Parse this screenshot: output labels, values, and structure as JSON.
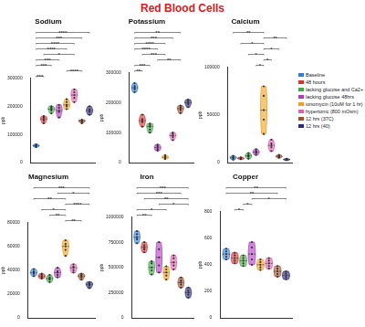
{
  "title": "Red Blood Cells",
  "legend": "right",
  "chart_data": [
    {
      "type": "violin",
      "title": "Sodium",
      "y_label": "ppb",
      "ylim": [
        0,
        300000
      ],
      "yticks": [
        0,
        100000,
        200000,
        300000
      ],
      "grid": false,
      "tick_labels": "y",
      "series": [
        {
          "name": "Baseline",
          "color": "#2f7fd8",
          "values": [
            55000,
            58000,
            62000,
            65000,
            60000
          ]
        },
        {
          "name": "48 hours",
          "color": "#e03030",
          "values": [
            140000,
            150000,
            160000,
            165000,
            155000
          ]
        },
        {
          "name": "lacking glucose and Ca2+ 48 hrs",
          "color": "#3faa48",
          "values": [
            175000,
            185000,
            195000,
            200000,
            190000
          ]
        },
        {
          "name": "lacking glucose 48hrs",
          "color": "#b03ac0",
          "values": [
            160000,
            180000,
            195000,
            205000,
            185000
          ]
        },
        {
          "name": "ionomycin (10uM for 1 hr)",
          "color": "#f0a020",
          "values": [
            190000,
            200000,
            215000,
            225000,
            205000
          ]
        },
        {
          "name": "hypertonic (800 mOsm)",
          "color": "#e060b0",
          "values": [
            215000,
            230000,
            250000,
            260000,
            240000
          ]
        },
        {
          "name": "12 hrs (37C)",
          "color": "#a0522d",
          "values": [
            140000,
            145000,
            150000,
            148000,
            152000
          ]
        },
        {
          "name": "12 hrs (40)",
          "color": "#2a2a80",
          "values": [
            170000,
            180000,
            190000,
            200000,
            185000
          ]
        }
      ],
      "comparisons": [
        {
          "groups": [
            0,
            1
          ],
          "label": "***"
        },
        {
          "groups": [
            4,
            6
          ],
          "label": "****"
        },
        {
          "groups": [
            0,
            2
          ],
          "label": "***"
        },
        {
          "groups": [
            0,
            3
          ],
          "label": "***"
        },
        {
          "groups": [
            1,
            5
          ],
          "label": "*"
        },
        {
          "groups": [
            0,
            4
          ],
          "label": "****"
        },
        {
          "groups": [
            0,
            5
          ],
          "label": "****"
        },
        {
          "groups": [
            0,
            6
          ],
          "label": "***"
        },
        {
          "groups": [
            0,
            7
          ],
          "label": "****"
        }
      ]
    },
    {
      "type": "violin",
      "title": "Potassium",
      "y_label": "ppb",
      "ylim": [
        0,
        300000
      ],
      "yticks": [
        0,
        100000,
        200000,
        300000
      ],
      "grid": false,
      "tick_labels": "y",
      "series": [
        {
          "name": "Baseline",
          "color": "#2f7fd8",
          "values": [
            235000,
            245000,
            255000,
            265000,
            250000
          ]
        },
        {
          "name": "48 hours",
          "color": "#e03030",
          "values": [
            120000,
            135000,
            145000,
            160000,
            140000
          ]
        },
        {
          "name": "lacking glucose and Ca2+ 48 hrs",
          "color": "#3faa48",
          "values": [
            100000,
            110000,
            120000,
            130000,
            125000
          ]
        },
        {
          "name": "lacking glucose 48hrs",
          "color": "#b03ac0",
          "values": [
            40000,
            45000,
            50000,
            60000,
            55000
          ]
        },
        {
          "name": "ionomycin (10uM for 1 hr)",
          "color": "#f0a020",
          "values": [
            12000,
            15000,
            20000,
            25000,
            18000
          ]
        },
        {
          "name": "hypertonic (800 mOsm)",
          "color": "#e060b0",
          "values": [
            75000,
            85000,
            90000,
            100000,
            95000
          ]
        },
        {
          "name": "12 hrs (37C)",
          "color": "#a0522d",
          "values": [
            165000,
            175000,
            180000,
            190000,
            185000
          ]
        },
        {
          "name": "12 hrs (40)",
          "color": "#2a2a80",
          "values": [
            185000,
            195000,
            200000,
            210000,
            205000
          ]
        }
      ],
      "comparisons": [
        {
          "groups": [
            0,
            1
          ],
          "label": "**"
        },
        {
          "groups": [
            0,
            2
          ],
          "label": "***"
        },
        {
          "groups": [
            3,
            6
          ],
          "label": "**"
        },
        {
          "groups": [
            1,
            4
          ],
          "label": "***"
        },
        {
          "groups": [
            0,
            3
          ],
          "label": "****"
        },
        {
          "groups": [
            0,
            4
          ],
          "label": "****"
        },
        {
          "groups": [
            0,
            5
          ],
          "label": "***"
        },
        {
          "groups": [
            0,
            6
          ],
          "label": "**"
        }
      ]
    },
    {
      "type": "violin",
      "title": "Calcium",
      "y_label": "ppb",
      "ylim": [
        0,
        100000
      ],
      "yticks": [
        0,
        50000,
        100000
      ],
      "grid": false,
      "tick_labels": "y",
      "series": [
        {
          "name": "Baseline",
          "color": "#2f7fd8",
          "values": [
            3000,
            4500,
            6000,
            7000,
            5000
          ]
        },
        {
          "name": "48 hours",
          "color": "#e03030",
          "values": [
            3500,
            4000,
            5000,
            5500,
            4500
          ]
        },
        {
          "name": "lacking glucose and Ca2+ 48 hrs",
          "color": "#3faa48",
          "values": [
            4000,
            6000,
            8000,
            10000,
            7000
          ]
        },
        {
          "name": "lacking glucose 48hrs",
          "color": "#b03ac0",
          "values": [
            8000,
            10000,
            12000,
            14000,
            11000
          ]
        },
        {
          "name": "ionomycin (10uM for 1 hr)",
          "color": "#f0a020",
          "values": [
            30000,
            45000,
            55000,
            70000,
            80000
          ]
        },
        {
          "name": "hypertonic (800 mOsm)",
          "color": "#e060b0",
          "values": [
            12000,
            16000,
            20000,
            24000,
            18000
          ]
        },
        {
          "name": "12 hrs (37C)",
          "color": "#a0522d",
          "values": [
            5000,
            6000,
            7000,
            8000,
            6500
          ]
        },
        {
          "name": "12 hrs (40)",
          "color": "#2a2a80",
          "values": [
            2500,
            3000,
            3500,
            4000,
            3200
          ]
        }
      ],
      "comparisons": [
        {
          "groups": [
            3,
            4
          ],
          "label": "*"
        },
        {
          "groups": [
            4,
            5
          ],
          "label": "*"
        },
        {
          "groups": [
            2,
            4
          ],
          "label": "*"
        },
        {
          "groups": [
            4,
            6
          ],
          "label": "*"
        },
        {
          "groups": [
            1,
            4
          ],
          "label": "*"
        },
        {
          "groups": [
            4,
            7
          ],
          "label": "**"
        },
        {
          "groups": [
            0,
            4
          ],
          "label": "**"
        }
      ]
    },
    {
      "type": "violin",
      "title": "Magnesium",
      "y_label": "ppb",
      "ylim": [
        0,
        80000
      ],
      "yticks": [
        0,
        20000,
        40000,
        60000,
        80000
      ],
      "grid": false,
      "tick_labels": "y",
      "series": [
        {
          "name": "Baseline",
          "color": "#2f7fd8",
          "values": [
            35000,
            37000,
            39000,
            41000,
            38000
          ]
        },
        {
          "name": "48 hours",
          "color": "#e03030",
          "values": [
            33000,
            34000,
            36000,
            37000,
            35000
          ]
        },
        {
          "name": "lacking glucose and Ca2+ 48 hrs",
          "color": "#3faa48",
          "values": [
            30000,
            32000,
            34000,
            36000,
            33000
          ]
        },
        {
          "name": "lacking glucose 48hrs",
          "color": "#b03ac0",
          "values": [
            34000,
            36000,
            39000,
            42000,
            38000
          ]
        },
        {
          "name": "ionomycin (10uM for 1 hr)",
          "color": "#f0a020",
          "values": [
            52000,
            57000,
            60000,
            65000,
            62000
          ]
        },
        {
          "name": "hypertonic (800 mOsm)",
          "color": "#e060b0",
          "values": [
            38000,
            40000,
            42000,
            45000,
            43000
          ]
        },
        {
          "name": "12 hrs (37C)",
          "color": "#a0522d",
          "values": [
            32000,
            34000,
            35000,
            37000,
            36000
          ]
        },
        {
          "name": "12 hrs (40)",
          "color": "#2a2a80",
          "values": [
            25000,
            27000,
            28000,
            30000,
            29000
          ]
        }
      ],
      "comparisons": [
        {
          "groups": [
            4,
            6
          ],
          "label": "**"
        },
        {
          "groups": [
            2,
            4
          ],
          "label": "**"
        },
        {
          "groups": [
            1,
            4
          ],
          "label": "*"
        },
        {
          "groups": [
            4,
            7
          ],
          "label": "****"
        },
        {
          "groups": [
            0,
            4
          ],
          "label": "**"
        },
        {
          "groups": [
            3,
            7
          ],
          "label": "*"
        },
        {
          "groups": [
            0,
            7
          ],
          "label": "***"
        }
      ]
    },
    {
      "type": "violin",
      "title": "Iron",
      "y_label": "ppb",
      "ylim": [
        0,
        1000000
      ],
      "yticks": [
        0,
        250000,
        500000,
        750000,
        1000000
      ],
      "grid": false,
      "tick_labels": "y",
      "series": [
        {
          "name": "Baseline",
          "color": "#2f7fd8",
          "values": [
            740000,
            780000,
            800000,
            830000,
            860000
          ]
        },
        {
          "name": "48 hours",
          "color": "#e03030",
          "values": [
            650000,
            680000,
            700000,
            720000,
            750000
          ]
        },
        {
          "name": "lacking glucose and Ca2+ 48 hrs",
          "color": "#3faa48",
          "values": [
            430000,
            470000,
            500000,
            540000,
            560000
          ]
        },
        {
          "name": "lacking glucose 48hrs",
          "color": "#b03ac0",
          "values": [
            450000,
            520000,
            600000,
            680000,
            750000
          ]
        },
        {
          "name": "ionomycin (10uM for 1 hr)",
          "color": "#f0a020",
          "values": [
            380000,
            420000,
            450000,
            480000,
            510000
          ]
        },
        {
          "name": "hypertonic (800 mOsm)",
          "color": "#e060b0",
          "values": [
            480000,
            520000,
            550000,
            590000,
            620000
          ]
        },
        {
          "name": "12 hrs (37C)",
          "color": "#a0522d",
          "values": [
            300000,
            330000,
            350000,
            370000,
            400000
          ]
        },
        {
          "name": "12 hrs (40)",
          "color": "#2a2a80",
          "values": [
            200000,
            230000,
            250000,
            270000,
            300000
          ]
        }
      ],
      "comparisons": [
        {
          "groups": [
            0,
            2
          ],
          "label": "**"
        },
        {
          "groups": [
            0,
            4
          ],
          "label": "*"
        },
        {
          "groups": [
            3,
            7
          ],
          "label": "*"
        },
        {
          "groups": [
            1,
            7
          ],
          "label": "**"
        },
        {
          "groups": [
            0,
            6
          ],
          "label": "***"
        },
        {
          "groups": [
            0,
            7
          ],
          "label": "***"
        }
      ]
    },
    {
      "type": "violin",
      "title": "Copper",
      "y_label": "ppb",
      "ylim": [
        0,
        800
      ],
      "yticks": [
        0,
        200,
        400,
        600,
        800
      ],
      "grid": false,
      "tick_labels": "y",
      "series": [
        {
          "name": "Baseline",
          "color": "#2f7fd8",
          "values": [
            440,
            460,
            480,
            500,
            520
          ]
        },
        {
          "name": "48 hours",
          "color": "#e03030",
          "values": [
            410,
            430,
            450,
            470,
            490
          ]
        },
        {
          "name": "lacking glucose and Ca2+ 48 hrs",
          "color": "#3faa48",
          "values": [
            390,
            410,
            430,
            450,
            470
          ]
        },
        {
          "name": "lacking glucose 48hrs",
          "color": "#b03ac0",
          "values": [
            400,
            440,
            480,
            530,
            570
          ]
        },
        {
          "name": "ionomycin (10uM for 1 hr)",
          "color": "#f0a020",
          "values": [
            360,
            380,
            400,
            420,
            440
          ]
        },
        {
          "name": "hypertonic (800 mOsm)",
          "color": "#e060b0",
          "values": [
            370,
            390,
            410,
            430,
            450
          ]
        },
        {
          "name": "12 hrs (37C)",
          "color": "#a0522d",
          "values": [
            310,
            330,
            350,
            370,
            390
          ]
        },
        {
          "name": "12 hrs (40)",
          "color": "#2a2a80",
          "values": [
            290,
            305,
            320,
            335,
            350
          ]
        }
      ],
      "comparisons": [
        {
          "groups": [
            1,
            2
          ],
          "label": "*"
        },
        {
          "groups": [
            2,
            3
          ],
          "label": "*"
        },
        {
          "groups": [
            3,
            7
          ],
          "label": "*"
        },
        {
          "groups": [
            0,
            6
          ],
          "label": "**"
        },
        {
          "groups": [
            0,
            7
          ],
          "label": "**"
        }
      ]
    }
  ]
}
